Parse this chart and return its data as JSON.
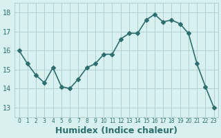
{
  "x": [
    0,
    1,
    2,
    3,
    4,
    5,
    6,
    7,
    8,
    9,
    10,
    11,
    12,
    13,
    14,
    15,
    16,
    17,
    18,
    19,
    20,
    21,
    22,
    23
  ],
  "y": [
    16.0,
    15.3,
    14.7,
    14.3,
    15.1,
    14.1,
    14.0,
    14.5,
    15.1,
    15.3,
    15.8,
    15.8,
    16.6,
    16.9,
    16.9,
    17.6,
    17.9,
    17.5,
    17.6,
    17.4,
    16.9,
    15.3,
    14.1,
    13.0
  ],
  "line_color": "#2d6e6e",
  "marker": "D",
  "marker_size": 3,
  "line_width": 1.2,
  "xlabel": "Humidex (Indice chaleur)",
  "xlabel_fontsize": 9,
  "bg_color": "#d8f0f0",
  "grid_color": "#b0d0d0",
  "tick_color": "#2d6e6e",
  "ylim": [
    12.5,
    18.5
  ],
  "xlim": [
    -0.5,
    23.5
  ],
  "yticks": [
    13,
    14,
    15,
    16,
    17,
    18
  ],
  "xtick_labels": [
    "0",
    "1",
    "2",
    "3",
    "4",
    "5",
    "6",
    "7",
    "8",
    "9",
    "10",
    "11",
    "12",
    "13",
    "14",
    "15",
    "16",
    "17",
    "18",
    "19",
    "20",
    "21",
    "22",
    "23"
  ]
}
